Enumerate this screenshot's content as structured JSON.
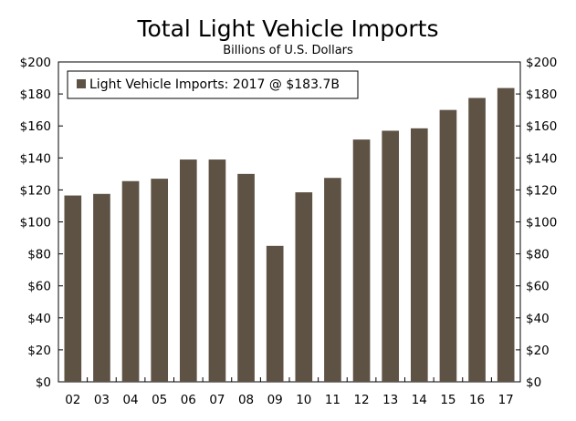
{
  "chart_data": {
    "type": "bar",
    "title": "Total Light Vehicle Imports",
    "subtitle": "Billions of U.S. Dollars",
    "categories": [
      "02",
      "03",
      "04",
      "05",
      "06",
      "07",
      "08",
      "09",
      "10",
      "11",
      "12",
      "13",
      "14",
      "15",
      "16",
      "17"
    ],
    "series": [
      {
        "name": "Light Vehicle Imports: 2017 @ $183.7B",
        "values": [
          116.5,
          117.5,
          125.5,
          127.0,
          139.0,
          139.0,
          130.0,
          85.0,
          118.5,
          127.5,
          151.5,
          157.0,
          158.5,
          170.0,
          177.5,
          183.7
        ]
      }
    ],
    "ylim": [
      0,
      200
    ],
    "yticks": [
      0,
      20,
      40,
      60,
      80,
      100,
      120,
      140,
      160,
      180,
      200
    ],
    "ytick_labels": [
      "$0",
      "$20",
      "$40",
      "$60",
      "$80",
      "$100",
      "$120",
      "$140",
      "$160",
      "$180",
      "$200"
    ],
    "legend_position": "top-left",
    "bar_color": "#5e5245",
    "grid": false
  }
}
